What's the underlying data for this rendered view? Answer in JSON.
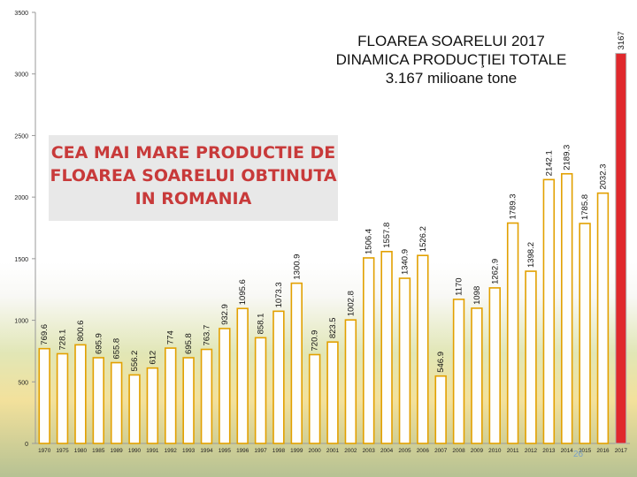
{
  "title": {
    "line1": "FLOAREA SOARELUI 2017",
    "line2": "DINAMICA PRODUCŢIEI TOTALE",
    "line3": "3.167 milioane tone"
  },
  "callout": {
    "line1": "CEA MAI MARE PRODUCTIE DE",
    "line2": "FLOAREA SOARELUI OBTINUTA",
    "line3": "IN ROMANIA"
  },
  "page_number": "26",
  "colors": {
    "bar_fill": "#fefefe",
    "bar_stroke": "#e2a000",
    "highlight_fill": "#e0282c",
    "axis": "#999999"
  },
  "chart_data": {
    "type": "bar",
    "categories": [
      "1970",
      "1975",
      "1980",
      "1985",
      "1989",
      "1990",
      "1991",
      "1992",
      "1993",
      "1994",
      "1995",
      "1996",
      "1997",
      "1998",
      "1999",
      "2000",
      "2001",
      "2002",
      "2003",
      "2004",
      "2005",
      "2006",
      "2007",
      "2008",
      "2009",
      "2010",
      "2011",
      "2012",
      "2013",
      "2014",
      "2015",
      "2016",
      "2017"
    ],
    "values": [
      769.6,
      728.1,
      800.6,
      695.9,
      655.8,
      556.2,
      612,
      774,
      695.8,
      763.7,
      932.9,
      1095.6,
      858.1,
      1073.3,
      1300.9,
      720.9,
      823.5,
      1002.8,
      1506.4,
      1557.8,
      1340.9,
      1526.2,
      546.9,
      1170,
      1098,
      1262.9,
      1789.3,
      1398.2,
      2142.1,
      2189.3,
      1785.8,
      2032.3,
      3167
    ],
    "value_labels": [
      "769.6",
      "728.1",
      "800.6",
      "695.9",
      "655.8",
      "556.2",
      "612",
      "774",
      "695.8",
      "763.7",
      "932.9",
      "1095.6",
      "858.1",
      "1073.3",
      "1300.9",
      "720.9",
      "823.5",
      "1002.8",
      "1506.4",
      "1557.8",
      "1340.9",
      "1526.2",
      "546.9",
      "1170",
      "1098",
      "1262.9",
      "1789.3",
      "1398.2",
      "2142.1",
      "2189.3",
      "1785.8",
      "2032.3",
      "3167"
    ],
    "highlight_index": 32,
    "ylim": [
      0,
      3500
    ],
    "yticks": [
      0,
      500,
      1000,
      1500,
      2000,
      2500,
      3000,
      3500
    ],
    "ytick_labels": [
      "0",
      "500",
      "1000",
      "1500",
      "2000",
      "2500",
      "3000",
      "3500"
    ],
    "grid": false,
    "xlabel": "",
    "ylabel": ""
  }
}
